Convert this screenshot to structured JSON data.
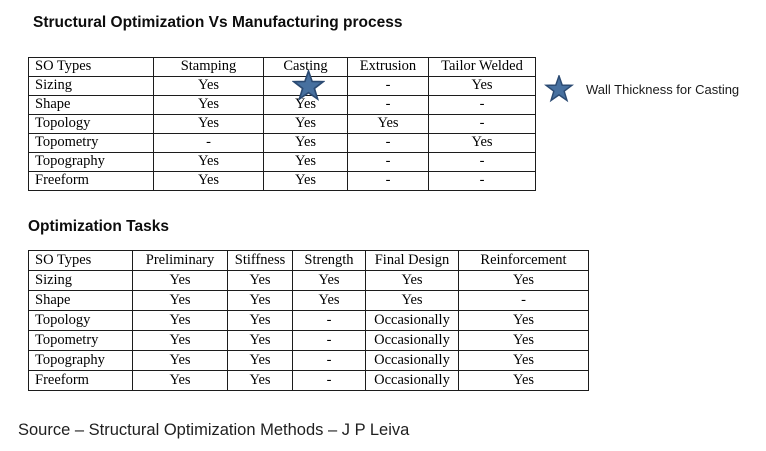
{
  "titles": {
    "main": "Structural Optimization Vs Manufacturing process",
    "tasks": "Optimization Tasks"
  },
  "manufacturing_table": {
    "headers": [
      "SO Types",
      "Stamping",
      "Casting",
      "Extrusion",
      "Tailor Welded"
    ],
    "rows": [
      [
        "Sizing",
        "Yes",
        "",
        "-",
        "Yes"
      ],
      [
        "Shape",
        "Yes",
        "Yes",
        "-",
        "-"
      ],
      [
        "Topology",
        "Yes",
        "Yes",
        "Yes",
        "-"
      ],
      [
        "Topometry",
        "-",
        "Yes",
        "-",
        "Yes"
      ],
      [
        "Topography",
        "Yes",
        "Yes",
        "-",
        "-"
      ],
      [
        "Freeform",
        "Yes",
        "Yes",
        "-",
        "-"
      ]
    ],
    "marker": {
      "row": "Sizing",
      "column": "Casting",
      "icon": "star-icon"
    }
  },
  "tasks_table": {
    "headers": [
      "SO Types",
      "Preliminary",
      "Stiffness",
      "Strength",
      "Final Design",
      "Reinforcement"
    ],
    "rows": [
      [
        "Sizing",
        "Yes",
        "Yes",
        "Yes",
        "Yes",
        "Yes"
      ],
      [
        "Shape",
        "Yes",
        "Yes",
        "Yes",
        "Yes",
        "-"
      ],
      [
        "Topology",
        "Yes",
        "Yes",
        "-",
        "Occasionally",
        "Yes"
      ],
      [
        "Topometry",
        "Yes",
        "Yes",
        "-",
        "Occasionally",
        "Yes"
      ],
      [
        "Topography",
        "Yes",
        "Yes",
        "-",
        "Occasionally",
        "Yes"
      ],
      [
        "Freeform",
        "Yes",
        "Yes",
        "-",
        "Occasionally",
        "Yes"
      ]
    ]
  },
  "legend": {
    "label": "Wall Thickness for Casting"
  },
  "colors": {
    "star_fill": "#47709f",
    "star_stroke": "#2b4a72"
  },
  "source": "Source – Structural Optimization Methods – J P Leiva"
}
